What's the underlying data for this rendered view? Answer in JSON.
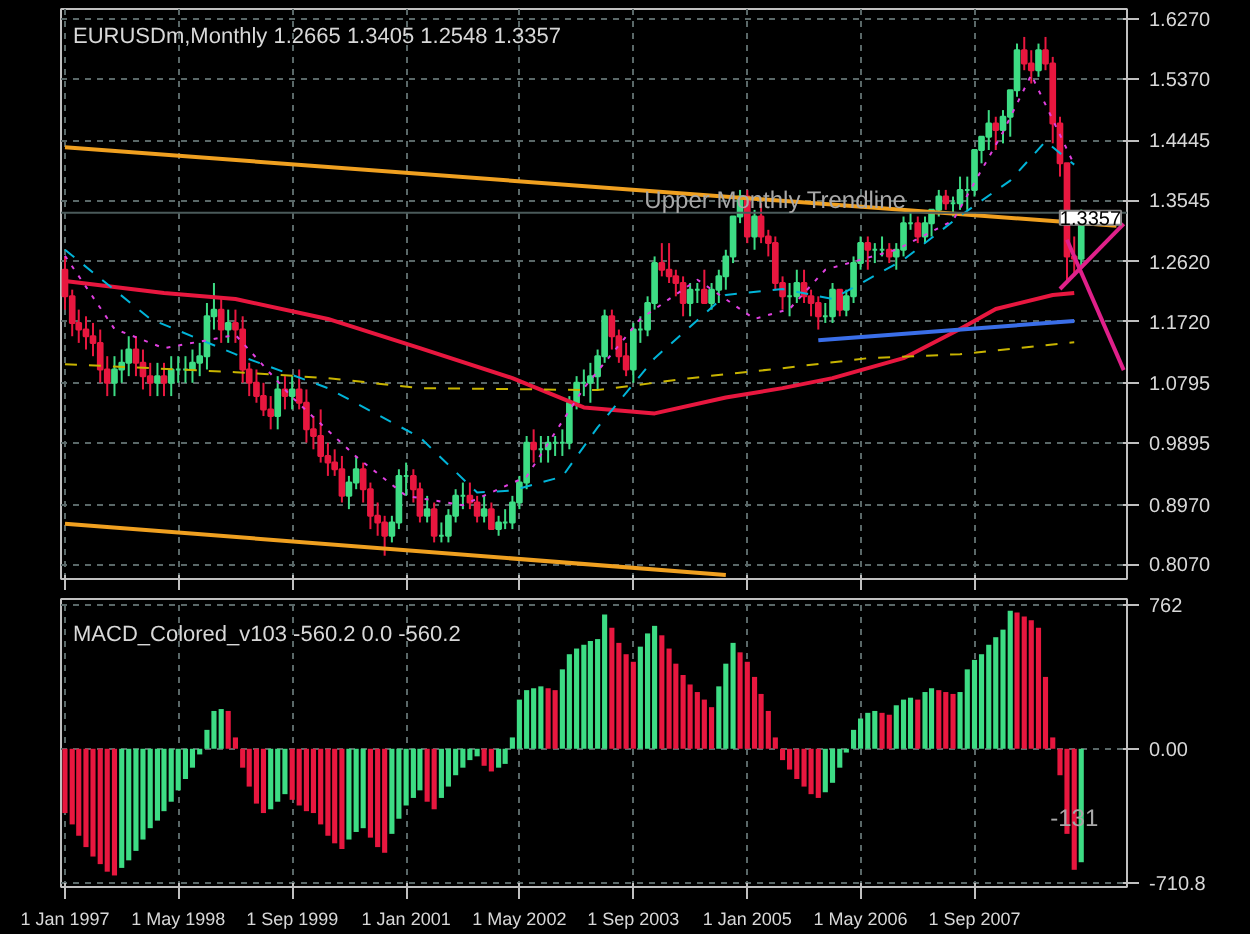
{
  "chart_data": [
    {
      "type": "candlestick",
      "title": "EURUSDm,Monthly  1.2665 1.3405 1.2548 1.3357",
      "x": [
        "1997-01",
        "1997-02",
        "1997-03",
        "1997-04",
        "1997-05",
        "1997-06",
        "1997-07",
        "1997-08",
        "1997-09",
        "1997-10",
        "1997-11",
        "1997-12",
        "1998-01",
        "1998-02",
        "1998-03",
        "1998-04",
        "1998-05",
        "1998-06",
        "1998-07",
        "1998-08",
        "1998-09",
        "1998-10",
        "1998-11",
        "1998-12",
        "1999-01",
        "1999-02",
        "1999-03",
        "1999-04",
        "1999-05",
        "1999-06",
        "1999-07",
        "1999-08",
        "1999-09",
        "1999-10",
        "1999-11",
        "1999-12",
        "2000-01",
        "2000-02",
        "2000-03",
        "2000-04",
        "2000-05",
        "2000-06",
        "2000-07",
        "2000-08",
        "2000-09",
        "2000-10",
        "2000-11",
        "2000-12",
        "2001-01",
        "2001-02",
        "2001-03",
        "2001-04",
        "2001-05",
        "2001-06",
        "2001-07",
        "2001-08",
        "2001-09",
        "2001-10",
        "2001-11",
        "2001-12",
        "2002-01",
        "2002-02",
        "2002-03",
        "2002-04",
        "2002-05",
        "2002-06",
        "2002-07",
        "2002-08",
        "2002-09",
        "2002-10",
        "2002-11",
        "2002-12",
        "2003-01",
        "2003-02",
        "2003-03",
        "2003-04",
        "2003-05",
        "2003-06",
        "2003-07",
        "2003-08",
        "2003-09",
        "2003-10",
        "2003-11",
        "2003-12",
        "2004-01",
        "2004-02",
        "2004-03",
        "2004-04",
        "2004-05",
        "2004-06",
        "2004-07",
        "2004-08",
        "2004-09",
        "2004-10",
        "2004-11",
        "2004-12",
        "2005-01",
        "2005-02",
        "2005-03",
        "2005-04",
        "2005-05",
        "2005-06",
        "2005-07",
        "2005-08",
        "2005-09",
        "2005-10",
        "2005-11",
        "2005-12",
        "2006-01",
        "2006-02",
        "2006-03",
        "2006-04",
        "2006-05",
        "2006-06",
        "2006-07",
        "2006-08",
        "2006-09",
        "2006-10",
        "2006-11",
        "2006-12",
        "2007-01",
        "2007-02",
        "2007-03",
        "2007-04",
        "2007-05",
        "2007-06",
        "2007-07",
        "2007-08",
        "2007-09",
        "2007-10",
        "2007-11",
        "2007-12",
        "2008-01",
        "2008-02",
        "2008-03",
        "2008-04",
        "2008-05",
        "2008-06",
        "2008-07",
        "2008-08",
        "2008-09",
        "2008-10",
        "2008-11",
        "2008-12"
      ],
      "ohlc": [
        [
          1.25,
          1.27,
          1.19,
          1.21
        ],
        [
          1.21,
          1.22,
          1.15,
          1.17
        ],
        [
          1.17,
          1.19,
          1.14,
          1.16
        ],
        [
          1.16,
          1.18,
          1.13,
          1.15
        ],
        [
          1.15,
          1.17,
          1.12,
          1.14
        ],
        [
          1.14,
          1.16,
          1.08,
          1.1
        ],
        [
          1.1,
          1.12,
          1.06,
          1.08
        ],
        [
          1.08,
          1.12,
          1.06,
          1.1
        ],
        [
          1.1,
          1.13,
          1.08,
          1.11
        ],
        [
          1.11,
          1.15,
          1.09,
          1.13
        ],
        [
          1.13,
          1.15,
          1.09,
          1.11
        ],
        [
          1.11,
          1.13,
          1.07,
          1.09
        ],
        [
          1.09,
          1.11,
          1.06,
          1.08
        ],
        [
          1.08,
          1.11,
          1.06,
          1.09
        ],
        [
          1.09,
          1.11,
          1.06,
          1.08
        ],
        [
          1.08,
          1.12,
          1.06,
          1.1
        ],
        [
          1.1,
          1.12,
          1.08,
          1.1
        ],
        [
          1.1,
          1.12,
          1.08,
          1.1
        ],
        [
          1.1,
          1.13,
          1.08,
          1.11
        ],
        [
          1.11,
          1.14,
          1.09,
          1.12
        ],
        [
          1.12,
          1.2,
          1.1,
          1.18
        ],
        [
          1.18,
          1.23,
          1.16,
          1.19
        ],
        [
          1.19,
          1.21,
          1.14,
          1.16
        ],
        [
          1.16,
          1.19,
          1.14,
          1.17
        ],
        [
          1.17,
          1.19,
          1.14,
          1.16
        ],
        [
          1.16,
          1.18,
          1.08,
          1.1
        ],
        [
          1.1,
          1.11,
          1.06,
          1.08
        ],
        [
          1.08,
          1.1,
          1.05,
          1.06
        ],
        [
          1.06,
          1.08,
          1.03,
          1.04
        ],
        [
          1.04,
          1.06,
          1.01,
          1.03
        ],
        [
          1.03,
          1.09,
          1.01,
          1.07
        ],
        [
          1.07,
          1.09,
          1.04,
          1.06
        ],
        [
          1.06,
          1.09,
          1.04,
          1.07
        ],
        [
          1.07,
          1.1,
          1.04,
          1.05
        ],
        [
          1.05,
          1.07,
          0.99,
          1.01
        ],
        [
          1.01,
          1.03,
          0.98,
          1.0
        ],
        [
          1.0,
          1.04,
          0.96,
          0.97
        ],
        [
          0.97,
          0.99,
          0.94,
          0.96
        ],
        [
          0.96,
          0.98,
          0.94,
          0.95
        ],
        [
          0.95,
          0.97,
          0.9,
          0.91
        ],
        [
          0.91,
          0.94,
          0.89,
          0.93
        ],
        [
          0.93,
          0.97,
          0.92,
          0.95
        ],
        [
          0.95,
          0.96,
          0.9,
          0.92
        ],
        [
          0.92,
          0.93,
          0.86,
          0.88
        ],
        [
          0.88,
          0.9,
          0.85,
          0.87
        ],
        [
          0.87,
          0.88,
          0.82,
          0.85
        ],
        [
          0.85,
          0.88,
          0.84,
          0.87
        ],
        [
          0.87,
          0.95,
          0.86,
          0.94
        ],
        [
          0.94,
          0.96,
          0.91,
          0.94
        ],
        [
          0.94,
          0.95,
          0.9,
          0.92
        ],
        [
          0.92,
          0.93,
          0.87,
          0.88
        ],
        [
          0.88,
          0.91,
          0.87,
          0.89
        ],
        [
          0.89,
          0.9,
          0.84,
          0.85
        ],
        [
          0.85,
          0.87,
          0.84,
          0.85
        ],
        [
          0.85,
          0.89,
          0.84,
          0.88
        ],
        [
          0.88,
          0.92,
          0.87,
          0.91
        ],
        [
          0.91,
          0.93,
          0.89,
          0.91
        ],
        [
          0.91,
          0.93,
          0.89,
          0.9
        ],
        [
          0.9,
          0.91,
          0.87,
          0.88
        ],
        [
          0.88,
          0.91,
          0.87,
          0.89
        ],
        [
          0.89,
          0.9,
          0.86,
          0.86
        ],
        [
          0.86,
          0.88,
          0.85,
          0.87
        ],
        [
          0.87,
          0.89,
          0.86,
          0.87
        ],
        [
          0.87,
          0.91,
          0.86,
          0.9
        ],
        [
          0.9,
          0.94,
          0.89,
          0.93
        ],
        [
          0.93,
          1.0,
          0.92,
          0.99
        ],
        [
          0.99,
          1.01,
          0.96,
          0.98
        ],
        [
          0.98,
          1.0,
          0.96,
          0.98
        ],
        [
          0.98,
          1.0,
          0.96,
          0.99
        ],
        [
          0.99,
          1.0,
          0.97,
          0.99
        ],
        [
          0.99,
          1.01,
          0.97,
          0.99
        ],
        [
          0.99,
          1.06,
          0.98,
          1.05
        ],
        [
          1.05,
          1.09,
          1.04,
          1.08
        ],
        [
          1.08,
          1.1,
          1.06,
          1.08
        ],
        [
          1.08,
          1.11,
          1.05,
          1.09
        ],
        [
          1.09,
          1.13,
          1.07,
          1.12
        ],
        [
          1.12,
          1.19,
          1.11,
          1.18
        ],
        [
          1.18,
          1.19,
          1.13,
          1.15
        ],
        [
          1.15,
          1.16,
          1.11,
          1.12
        ],
        [
          1.12,
          1.14,
          1.09,
          1.1
        ],
        [
          1.1,
          1.17,
          1.08,
          1.16
        ],
        [
          1.16,
          1.18,
          1.14,
          1.16
        ],
        [
          1.16,
          1.21,
          1.15,
          1.2
        ],
        [
          1.2,
          1.27,
          1.19,
          1.26
        ],
        [
          1.26,
          1.29,
          1.24,
          1.25
        ],
        [
          1.25,
          1.29,
          1.23,
          1.24
        ],
        [
          1.24,
          1.25,
          1.21,
          1.23
        ],
        [
          1.23,
          1.24,
          1.18,
          1.2
        ],
        [
          1.2,
          1.23,
          1.18,
          1.22
        ],
        [
          1.22,
          1.23,
          1.2,
          1.22
        ],
        [
          1.22,
          1.25,
          1.2,
          1.2
        ],
        [
          1.2,
          1.23,
          1.19,
          1.22
        ],
        [
          1.22,
          1.25,
          1.2,
          1.24
        ],
        [
          1.24,
          1.28,
          1.22,
          1.27
        ],
        [
          1.27,
          1.33,
          1.26,
          1.33
        ],
        [
          1.33,
          1.37,
          1.32,
          1.36
        ],
        [
          1.36,
          1.37,
          1.29,
          1.3
        ],
        [
          1.3,
          1.34,
          1.28,
          1.33
        ],
        [
          1.33,
          1.35,
          1.29,
          1.3
        ],
        [
          1.3,
          1.31,
          1.27,
          1.29
        ],
        [
          1.29,
          1.3,
          1.22,
          1.23
        ],
        [
          1.23,
          1.24,
          1.19,
          1.21
        ],
        [
          1.21,
          1.23,
          1.18,
          1.21
        ],
        [
          1.21,
          1.25,
          1.2,
          1.23
        ],
        [
          1.23,
          1.25,
          1.2,
          1.21
        ],
        [
          1.21,
          1.22,
          1.18,
          1.2
        ],
        [
          1.2,
          1.21,
          1.16,
          1.18
        ],
        [
          1.18,
          1.2,
          1.17,
          1.18
        ],
        [
          1.18,
          1.23,
          1.17,
          1.22
        ],
        [
          1.22,
          1.22,
          1.18,
          1.19
        ],
        [
          1.19,
          1.22,
          1.18,
          1.21
        ],
        [
          1.21,
          1.27,
          1.2,
          1.26
        ],
        [
          1.26,
          1.3,
          1.25,
          1.29
        ],
        [
          1.29,
          1.3,
          1.25,
          1.28
        ],
        [
          1.28,
          1.29,
          1.26,
          1.28
        ],
        [
          1.28,
          1.3,
          1.27,
          1.28
        ],
        [
          1.28,
          1.29,
          1.26,
          1.27
        ],
        [
          1.27,
          1.29,
          1.25,
          1.28
        ],
        [
          1.28,
          1.33,
          1.27,
          1.32
        ],
        [
          1.32,
          1.34,
          1.31,
          1.32
        ],
        [
          1.32,
          1.33,
          1.29,
          1.3
        ],
        [
          1.3,
          1.33,
          1.29,
          1.32
        ],
        [
          1.32,
          1.34,
          1.3,
          1.34
        ],
        [
          1.34,
          1.37,
          1.33,
          1.36
        ],
        [
          1.36,
          1.37,
          1.34,
          1.35
        ],
        [
          1.35,
          1.36,
          1.33,
          1.35
        ],
        [
          1.35,
          1.39,
          1.34,
          1.37
        ],
        [
          1.37,
          1.39,
          1.34,
          1.37
        ],
        [
          1.37,
          1.43,
          1.36,
          1.43
        ],
        [
          1.43,
          1.45,
          1.41,
          1.45
        ],
        [
          1.45,
          1.49,
          1.43,
          1.47
        ],
        [
          1.47,
          1.48,
          1.43,
          1.46
        ],
        [
          1.46,
          1.49,
          1.44,
          1.48
        ],
        [
          1.48,
          1.52,
          1.45,
          1.52
        ],
        [
          1.52,
          1.59,
          1.51,
          1.58
        ],
        [
          1.58,
          1.6,
          1.55,
          1.56
        ],
        [
          1.56,
          1.58,
          1.53,
          1.55
        ],
        [
          1.55,
          1.59,
          1.54,
          1.58
        ],
        [
          1.58,
          1.6,
          1.55,
          1.56
        ],
        [
          1.56,
          1.57,
          1.44,
          1.47
        ],
        [
          1.47,
          1.48,
          1.39,
          1.41
        ],
        [
          1.41,
          1.41,
          1.23,
          1.27
        ],
        [
          1.27,
          1.3,
          1.24,
          1.2665
        ],
        [
          1.2665,
          1.3405,
          1.2548,
          1.3357
        ]
      ],
      "colors": [
        "#e8173f",
        "#e8173f",
        "#e8173f",
        "#e8173f",
        "#e8173f",
        "#e8173f",
        "#e8173f",
        "#3ddc84",
        "#3ddc84",
        "#3ddc84",
        "#e8173f",
        "#e8173f",
        "#e8173f",
        "#3ddc84",
        "#e8173f",
        "#3ddc84",
        "#3ddc84",
        "#3ddc84",
        "#3ddc84",
        "#3ddc84",
        "#3ddc84",
        "#3ddc84",
        "#e8173f",
        "#3ddc84",
        "#e8173f",
        "#e8173f",
        "#e8173f",
        "#e8173f",
        "#e8173f",
        "#e8173f",
        "#3ddc84",
        "#e8173f",
        "#3ddc84",
        "#e8173f",
        "#e8173f",
        "#e8173f",
        "#e8173f",
        "#e8173f",
        "#e8173f",
        "#e8173f",
        "#3ddc84",
        "#3ddc84",
        "#e8173f",
        "#e8173f",
        "#e8173f",
        "#e8173f",
        "#3ddc84",
        "#3ddc84",
        "#3ddc84",
        "#e8173f",
        "#e8173f",
        "#3ddc84",
        "#e8173f",
        "#3ddc84",
        "#3ddc84",
        "#3ddc84",
        "#3ddc84",
        "#e8173f",
        "#e8173f",
        "#3ddc84",
        "#e8173f",
        "#3ddc84",
        "#3ddc84",
        "#3ddc84",
        "#3ddc84",
        "#3ddc84",
        "#e8173f",
        "#3ddc84",
        "#3ddc84",
        "#3ddc84",
        "#3ddc84",
        "#3ddc84",
        "#3ddc84",
        "#3ddc84",
        "#3ddc84",
        "#3ddc84",
        "#3ddc84",
        "#e8173f",
        "#e8173f",
        "#e8173f",
        "#3ddc84",
        "#3ddc84",
        "#3ddc84",
        "#3ddc84",
        "#e8173f",
        "#e8173f",
        "#e8173f",
        "#e8173f",
        "#3ddc84",
        "#3ddc84",
        "#e8173f",
        "#3ddc84",
        "#3ddc84",
        "#3ddc84",
        "#3ddc84",
        "#3ddc84",
        "#e8173f",
        "#3ddc84",
        "#e8173f",
        "#e8173f",
        "#e8173f",
        "#e8173f",
        "#3ddc84",
        "#3ddc84",
        "#e8173f",
        "#e8173f",
        "#e8173f",
        "#3ddc84",
        "#3ddc84",
        "#e8173f",
        "#3ddc84",
        "#3ddc84",
        "#3ddc84",
        "#e8173f",
        "#3ddc84",
        "#3ddc84",
        "#e8173f",
        "#3ddc84",
        "#3ddc84",
        "#3ddc84",
        "#e8173f",
        "#3ddc84",
        "#3ddc84",
        "#3ddc84",
        "#e8173f",
        "#3ddc84",
        "#3ddc84",
        "#3ddc84",
        "#3ddc84",
        "#3ddc84",
        "#3ddc84",
        "#e8173f",
        "#3ddc84",
        "#3ddc84",
        "#3ddc84",
        "#e8173f",
        "#e8173f",
        "#3ddc84",
        "#e8173f",
        "#e8173f",
        "#e8173f",
        "#e8173f",
        "#e8173f",
        "#3ddc84"
      ],
      "series": [
        {
          "type": "line",
          "color": "#f0a020",
          "line_style": "solid",
          "x": [
            "1997-01",
            "2009-05"
          ],
          "values": [
            1.434,
            1.316
          ]
        },
        {
          "type": "line",
          "color": "#f0a020",
          "line_style": "solid",
          "x": [
            "1997-01",
            "2004-10"
          ],
          "values": [
            0.868,
            0.791
          ]
        },
        {
          "type": "line",
          "color": "#e8173f",
          "line_style": "solid",
          "x": [
            "1997-01",
            "1998-03",
            "1999-01",
            "2000-02",
            "2001-03",
            "2002-04",
            "2003-02",
            "2003-12",
            "2004-10",
            "2005-06",
            "2006-01",
            "2006-11",
            "2007-07",
            "2007-12",
            "2008-08",
            "2008-11"
          ],
          "values": [
            1.233,
            1.215,
            1.206,
            1.176,
            1.132,
            1.087,
            1.043,
            1.034,
            1.058,
            1.072,
            1.087,
            1.117,
            1.161,
            1.191,
            1.212,
            1.215
          ]
        },
        {
          "type": "line",
          "color": "#c8b400",
          "line_style": "dashed",
          "x": [
            "1997-01",
            "1999-01",
            "2000-02",
            "2001-03",
            "2003-04",
            "2004-05",
            "2005-06",
            "2006-06",
            "2007-07",
            "2008-03",
            "2008-11"
          ],
          "values": [
            1.108,
            1.096,
            1.087,
            1.072,
            1.069,
            1.087,
            1.102,
            1.117,
            1.123,
            1.132,
            1.141
          ]
        },
        {
          "type": "line",
          "color": "#00b4d8",
          "line_style": "dashed",
          "x": [
            "1997-01",
            "1998-01",
            "1999-01",
            "2000-02",
            "2001-03",
            "2001-11",
            "2002-04",
            "2002-11",
            "2003-04",
            "2003-12",
            "2004-10",
            "2005-06",
            "2006-01",
            "2006-11",
            "2007-07",
            "2008-02",
            "2008-07",
            "2008-11"
          ],
          "values": [
            1.28,
            1.176,
            1.123,
            1.072,
            0.998,
            0.915,
            0.918,
            0.939,
            1.013,
            1.117,
            1.212,
            1.221,
            1.206,
            1.265,
            1.331,
            1.384,
            1.443,
            1.408
          ]
        },
        {
          "type": "line",
          "color": "#e040e0",
          "line_style": "dotted",
          "x": [
            "1997-01",
            "1997-08",
            "1998-03",
            "1999-01",
            "1999-09",
            "2000-06",
            "2001-01",
            "2001-09",
            "2002-06",
            "2003-02",
            "2003-10",
            "2004-06",
            "2005-02",
            "2005-07",
            "2005-12",
            "2006-05",
            "2006-10",
            "2007-06",
            "2008-01",
            "2008-05",
            "2008-11"
          ],
          "values": [
            1.271,
            1.161,
            1.132,
            1.152,
            1.058,
            0.969,
            0.91,
            0.896,
            0.939,
            1.072,
            1.176,
            1.235,
            1.176,
            1.191,
            1.25,
            1.265,
            1.28,
            1.324,
            1.457,
            1.543,
            1.408
          ]
        },
        {
          "type": "line",
          "color": "#3a6ee8",
          "line_style": "solid",
          "x": [
            "2005-11",
            "2008-11"
          ],
          "values": [
            1.144,
            1.173
          ]
        },
        {
          "type": "line",
          "color": "#e0208a",
          "line_style": "solid",
          "x": [
            "2008-09",
            "2009-06"
          ],
          "values": [
            1.221,
            1.319
          ]
        },
        {
          "type": "line",
          "color": "#e0208a",
          "line_style": "solid",
          "x": [
            "2008-10",
            "2009-06"
          ],
          "values": [
            1.295,
            1.099
          ]
        }
      ],
      "xlim": [
        "1996-12-15",
        "2009-06-15"
      ],
      "xticks": [
        {
          "value": "1997-01-01",
          "label": null
        },
        {
          "value": "1998-05-01",
          "label": null
        },
        {
          "value": "1999-09-01",
          "label": null
        },
        {
          "value": "2001-01-01",
          "label": null
        },
        {
          "value": "2002-05-01",
          "label": null
        },
        {
          "value": "2003-09-01",
          "label": null
        },
        {
          "value": "2005-01-01",
          "label": null
        },
        {
          "value": "2006-05-01",
          "label": null
        },
        {
          "value": "2007-09-01",
          "label": null
        }
      ],
      "ylim": [
        0.785,
        1.642
      ],
      "yticks": [
        {
          "value": 0.807,
          "label": "0.8070"
        },
        {
          "value": 0.897,
          "label": "0.8970"
        },
        {
          "value": 0.9895,
          "label": "0.9895"
        },
        {
          "value": 1.0795,
          "label": "1.0795"
        },
        {
          "value": 1.172,
          "label": "1.1720"
        },
        {
          "value": 1.262,
          "label": "1.2620"
        },
        {
          "value": 1.3545,
          "label": "1.3545"
        },
        {
          "value": 1.4445,
          "label": "1.4445"
        },
        {
          "value": 1.537,
          "label": "1.5370"
        },
        {
          "value": 1.627,
          "label": "1.6270"
        }
      ],
      "tick_labels": "y",
      "grid": true,
      "ref_lines": [
        {
          "axis": "y",
          "value": 1.3357,
          "label": "1.3357",
          "color": "#4a5a5a"
        }
      ],
      "annotations": [
        {
          "text": "Upper Monthly Trendline",
          "x": "2005-05",
          "y": 1.355
        }
      ]
    },
    {
      "type": "bar",
      "title": "MACD_Colored_v103 -560.2 0.0 -560.2",
      "x": [
        "1997-01",
        "1997-02",
        "1997-03",
        "1997-04",
        "1997-05",
        "1997-06",
        "1997-07",
        "1997-08",
        "1997-09",
        "1997-10",
        "1997-11",
        "1997-12",
        "1998-01",
        "1998-02",
        "1998-03",
        "1998-04",
        "1998-05",
        "1998-06",
        "1998-07",
        "1998-08",
        "1998-09",
        "1998-10",
        "1998-11",
        "1998-12",
        "1999-01",
        "1999-02",
        "1999-03",
        "1999-04",
        "1999-05",
        "1999-06",
        "1999-07",
        "1999-08",
        "1999-09",
        "1999-10",
        "1999-11",
        "1999-12",
        "2000-01",
        "2000-02",
        "2000-03",
        "2000-04",
        "2000-05",
        "2000-06",
        "2000-07",
        "2000-08",
        "2000-09",
        "2000-10",
        "2000-11",
        "2000-12",
        "2001-01",
        "2001-02",
        "2001-03",
        "2001-04",
        "2001-05",
        "2001-06",
        "2001-07",
        "2001-08",
        "2001-09",
        "2001-10",
        "2001-11",
        "2001-12",
        "2002-01",
        "2002-02",
        "2002-03",
        "2002-04",
        "2002-05",
        "2002-06",
        "2002-07",
        "2002-08",
        "2002-09",
        "2002-10",
        "2002-11",
        "2002-12",
        "2003-01",
        "2003-02",
        "2003-03",
        "2003-04",
        "2003-05",
        "2003-06",
        "2003-07",
        "2003-08",
        "2003-09",
        "2003-10",
        "2003-11",
        "2003-12",
        "2004-01",
        "2004-02",
        "2004-03",
        "2004-04",
        "2004-05",
        "2004-06",
        "2004-07",
        "2004-08",
        "2004-09",
        "2004-10",
        "2004-11",
        "2004-12",
        "2005-01",
        "2005-02",
        "2005-03",
        "2005-04",
        "2005-05",
        "2005-06",
        "2005-07",
        "2005-08",
        "2005-09",
        "2005-10",
        "2005-11",
        "2005-12",
        "2006-01",
        "2006-02",
        "2006-03",
        "2006-04",
        "2006-05",
        "2006-06",
        "2006-07",
        "2006-08",
        "2006-09",
        "2006-10",
        "2006-11",
        "2006-12",
        "2007-01",
        "2007-02",
        "2007-03",
        "2007-04",
        "2007-05",
        "2007-06",
        "2007-07",
        "2007-08",
        "2007-09",
        "2007-10",
        "2007-11",
        "2007-12",
        "2008-01",
        "2008-02",
        "2008-03",
        "2008-04",
        "2008-05",
        "2008-06",
        "2008-07",
        "2008-08",
        "2008-09",
        "2008-10",
        "2008-11",
        "2008-12"
      ],
      "values": [
        -340,
        -400,
        -460,
        -520,
        -570,
        -610,
        -650,
        -670,
        -630,
        -590,
        -540,
        -480,
        -420,
        -380,
        -330,
        -280,
        -220,
        -160,
        -100,
        -30,
        100,
        200,
        210,
        200,
        60,
        -100,
        -200,
        -290,
        -340,
        -320,
        -280,
        -240,
        -270,
        -300,
        -330,
        -340,
        -400,
        -460,
        -500,
        -530,
        -480,
        -440,
        -420,
        -470,
        -520,
        -550,
        -450,
        -370,
        -300,
        -260,
        -220,
        -280,
        -320,
        -260,
        -200,
        -140,
        -100,
        -60,
        -40,
        -90,
        -120,
        -100,
        -80,
        60,
        260,
        310,
        320,
        330,
        320,
        310,
        420,
        500,
        530,
        550,
        570,
        580,
        710,
        640,
        560,
        500,
        460,
        540,
        610,
        650,
        600,
        530,
        450,
        390,
        340,
        300,
        260,
        220,
        330,
        450,
        560,
        510,
        460,
        380,
        290,
        200,
        60,
        -60,
        -110,
        -160,
        -200,
        -240,
        -260,
        -230,
        -180,
        -100,
        -20,
        100,
        160,
        190,
        200,
        190,
        180,
        230,
        260,
        270,
        260,
        300,
        320,
        310,
        300,
        290,
        300,
        420,
        470,
        500,
        550,
        590,
        630,
        730,
        720,
        700,
        680,
        640,
        380,
        60,
        -140,
        -450,
        -640,
        -600
      ],
      "colors": [
        "#e8173f",
        "#e8173f",
        "#e8173f",
        "#e8173f",
        "#e8173f",
        "#e8173f",
        "#e8173f",
        "#e8173f",
        "#3ddc84",
        "#3ddc84",
        "#3ddc84",
        "#3ddc84",
        "#3ddc84",
        "#3ddc84",
        "#3ddc84",
        "#3ddc84",
        "#3ddc84",
        "#3ddc84",
        "#3ddc84",
        "#3ddc84",
        "#3ddc84",
        "#3ddc84",
        "#3ddc84",
        "#e8173f",
        "#e8173f",
        "#e8173f",
        "#e8173f",
        "#e8173f",
        "#e8173f",
        "#3ddc84",
        "#3ddc84",
        "#3ddc84",
        "#e8173f",
        "#e8173f",
        "#e8173f",
        "#e8173f",
        "#e8173f",
        "#e8173f",
        "#e8173f",
        "#e8173f",
        "#3ddc84",
        "#3ddc84",
        "#3ddc84",
        "#e8173f",
        "#e8173f",
        "#e8173f",
        "#3ddc84",
        "#3ddc84",
        "#3ddc84",
        "#3ddc84",
        "#3ddc84",
        "#e8173f",
        "#e8173f",
        "#3ddc84",
        "#3ddc84",
        "#3ddc84",
        "#3ddc84",
        "#3ddc84",
        "#3ddc84",
        "#e8173f",
        "#e8173f",
        "#3ddc84",
        "#3ddc84",
        "#3ddc84",
        "#3ddc84",
        "#3ddc84",
        "#3ddc84",
        "#3ddc84",
        "#e8173f",
        "#e8173f",
        "#3ddc84",
        "#3ddc84",
        "#3ddc84",
        "#3ddc84",
        "#3ddc84",
        "#3ddc84",
        "#3ddc84",
        "#e8173f",
        "#e8173f",
        "#e8173f",
        "#e8173f",
        "#3ddc84",
        "#3ddc84",
        "#3ddc84",
        "#e8173f",
        "#e8173f",
        "#e8173f",
        "#e8173f",
        "#e8173f",
        "#e8173f",
        "#e8173f",
        "#e8173f",
        "#3ddc84",
        "#3ddc84",
        "#3ddc84",
        "#e8173f",
        "#e8173f",
        "#e8173f",
        "#e8173f",
        "#e8173f",
        "#e8173f",
        "#e8173f",
        "#e8173f",
        "#e8173f",
        "#e8173f",
        "#e8173f",
        "#e8173f",
        "#3ddc84",
        "#3ddc84",
        "#3ddc84",
        "#3ddc84",
        "#3ddc84",
        "#3ddc84",
        "#3ddc84",
        "#3ddc84",
        "#e8173f",
        "#e8173f",
        "#3ddc84",
        "#3ddc84",
        "#3ddc84",
        "#e8173f",
        "#3ddc84",
        "#3ddc84",
        "#e8173f",
        "#e8173f",
        "#e8173f",
        "#3ddc84",
        "#3ddc84",
        "#3ddc84",
        "#3ddc84",
        "#3ddc84",
        "#3ddc84",
        "#3ddc84",
        "#3ddc84",
        "#e8173f",
        "#e8173f",
        "#e8173f",
        "#e8173f",
        "#e8173f",
        "#e8173f",
        "#e8173f",
        "#e8173f",
        "#e8173f",
        "#3ddc84"
      ],
      "xlim": [
        "1996-12-15",
        "2009-06-15"
      ],
      "xticks": [
        {
          "value": "1997-01-01",
          "label": "1 Jan 1997"
        },
        {
          "value": "1998-05-01",
          "label": "1 May 1998"
        },
        {
          "value": "1999-09-01",
          "label": "1 Sep 1999"
        },
        {
          "value": "2001-01-01",
          "label": "1 Jan 2001"
        },
        {
          "value": "2002-05-01",
          "label": "1 May 2002"
        },
        {
          "value": "2003-09-01",
          "label": "1 Sep 2003"
        },
        {
          "value": "2005-01-01",
          "label": "1 Jan 2005"
        },
        {
          "value": "2006-05-01",
          "label": "1 May 2006"
        },
        {
          "value": "2007-09-01",
          "label": "1 Sep 2007"
        }
      ],
      "ylim": [
        -731,
        792
      ],
      "yticks": [
        762,
        {
          "value": 0,
          "label": "0.00"
        },
        -710.8
      ],
      "grid": true,
      "annotations": [
        {
          "text": "-131",
          "x": "2008-11",
          "y": -363
        }
      ]
    }
  ]
}
